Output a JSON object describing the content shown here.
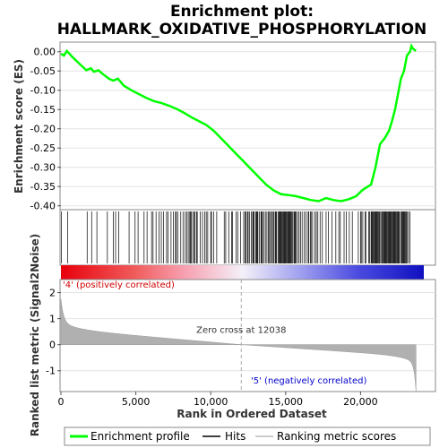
{
  "chart_data": {
    "type": "line",
    "title_line1": "Enrichment plot:",
    "title_line2": "HALLMARK_OXIDATIVE_PHOSPHORYLATION",
    "es_panel": {
      "ylabel": "Enrichment score (ES)",
      "ylim": [
        -0.41,
        0.025
      ],
      "yticks": [
        "0.00",
        "-0.05",
        "-0.10",
        "-0.15",
        "-0.20",
        "-0.25",
        "-0.30",
        "-0.35",
        "-0.40"
      ],
      "ytick_values": [
        0.0,
        -0.05,
        -0.1,
        -0.15,
        -0.2,
        -0.25,
        -0.3,
        -0.35,
        -0.4
      ],
      "series": [
        {
          "name": "Enrichment profile",
          "color": "#00ff00",
          "x": [
            0,
            200,
            400,
            800,
            1200,
            1700,
            2000,
            2200,
            2500,
            2800,
            3200,
            3500,
            3800,
            4200,
            4700,
            5200,
            5700,
            6200,
            6700,
            7200,
            7700,
            8200,
            8700,
            9200,
            9700,
            10200,
            10700,
            11200,
            11700,
            12200,
            12700,
            13200,
            13700,
            14200,
            14700,
            15200,
            15700,
            16200,
            16700,
            17200,
            17700,
            18200,
            18700,
            19200,
            19700,
            20100,
            20400,
            20700,
            21000,
            21300,
            21600,
            21900,
            22100,
            22300,
            22500,
            22700,
            22900,
            23100,
            23300,
            23400,
            23500,
            23700
          ],
          "y": [
            -0.005,
            -0.01,
            0.002,
            -0.015,
            -0.03,
            -0.048,
            -0.043,
            -0.052,
            -0.048,
            -0.058,
            -0.07,
            -0.075,
            -0.07,
            -0.088,
            -0.1,
            -0.11,
            -0.12,
            -0.128,
            -0.133,
            -0.14,
            -0.148,
            -0.158,
            -0.17,
            -0.18,
            -0.19,
            -0.205,
            -0.225,
            -0.245,
            -0.265,
            -0.285,
            -0.305,
            -0.325,
            -0.345,
            -0.36,
            -0.37,
            -0.372,
            -0.375,
            -0.38,
            -0.385,
            -0.388,
            -0.38,
            -0.385,
            -0.388,
            -0.383,
            -0.375,
            -0.36,
            -0.352,
            -0.345,
            -0.3,
            -0.24,
            -0.225,
            -0.205,
            -0.18,
            -0.15,
            -0.11,
            -0.07,
            -0.05,
            -0.01,
            0.0,
            0.015,
            0.008,
            0.002
          ]
        }
      ]
    },
    "hits": [
      30,
      450,
      1750,
      2050,
      2400,
      3100,
      3500,
      3650,
      3850,
      4550,
      4950,
      5150,
      5550,
      5750,
      6050,
      6150,
      6350,
      6550,
      6700,
      6850,
      7050,
      7150,
      7350,
      7500,
      7650,
      7700,
      7800,
      8000,
      8150,
      8300,
      8400,
      8500,
      8600,
      8650,
      8700,
      8800,
      8900,
      8950,
      9050,
      9100,
      9300,
      9450,
      9600,
      9700,
      9800,
      10000,
      10050,
      10200,
      10400,
      10900,
      11000,
      11200,
      11400,
      11450,
      11700,
      11800,
      12000,
      12200,
      12300,
      12350,
      12450,
      12500,
      12600,
      12700,
      12800,
      12850,
      12900,
      13000,
      13050,
      13100,
      13150,
      13250,
      13350,
      13400,
      13450,
      13550,
      13650,
      13750,
      13850,
      13900,
      14000,
      14050,
      14150,
      14200,
      14300,
      14350,
      14400,
      14500,
      14550,
      14600,
      14650,
      14700,
      14750,
      14800,
      14850,
      14900,
      14950,
      15000,
      15050,
      15100,
      15150,
      15200,
      15250,
      15300,
      15350,
      15400,
      15450,
      15550,
      15600,
      15650,
      15700,
      15800,
      15900,
      16000,
      16100,
      16250,
      16350,
      16500,
      16550,
      16650,
      16700,
      16800,
      16950,
      17050,
      17150,
      17300,
      17450,
      17700,
      17850,
      18100,
      18350,
      18550,
      18650,
      18900,
      19050,
      19250,
      19450,
      19850,
      20000,
      20050,
      20150,
      20300,
      20350,
      20550,
      20600,
      20700,
      20750,
      20800,
      20850,
      20900,
      20950,
      21000,
      21050,
      21100,
      21150,
      21200,
      21250,
      21300,
      21400,
      21450,
      21500,
      21550,
      21600,
      21650,
      21700,
      21750,
      21800,
      21850,
      21900,
      21950,
      22000,
      22050,
      22100,
      22150,
      22200,
      22250,
      22300,
      22350,
      22400,
      22450,
      22500,
      22550,
      22600,
      22700,
      22750,
      22800,
      22850,
      22900,
      22950,
      23000,
      23050,
      23100,
      23200,
      23300
    ],
    "heatmap": {
      "pos_label": "'4' (positively correlated)",
      "neg_label": "'5' (negatively correlated)",
      "pos_color": "#e8000b",
      "mid_color": "#ffffff",
      "neg_color": "#0000cc"
    },
    "metric_panel": {
      "ylabel": "Ranked list metric (Signal2Noise)",
      "ylim": [
        -1.8,
        2.5
      ],
      "yticks": [
        "2",
        "1",
        "0",
        "-1"
      ],
      "ytick_values": [
        2,
        1,
        0,
        -1
      ],
      "zero_cross_label": "Zero cross at 12038",
      "zero_cross": 12038
    },
    "x_axis": {
      "xlabel": "Rank in Ordered Dataset",
      "xlim": [
        0,
        25000
      ],
      "xticks": [
        "0",
        "5,000",
        "10,000",
        "15,000",
        "20,000"
      ],
      "xtick_values": [
        0,
        5000,
        10000,
        15000,
        20000
      ],
      "n_genes": 23700
    },
    "legend": {
      "items": [
        {
          "label": "Enrichment profile",
          "color": "#00ff00"
        },
        {
          "label": "Hits",
          "color": "#000000"
        },
        {
          "label": "Ranking metric scores",
          "color": "#bbbbbb"
        }
      ]
    }
  }
}
